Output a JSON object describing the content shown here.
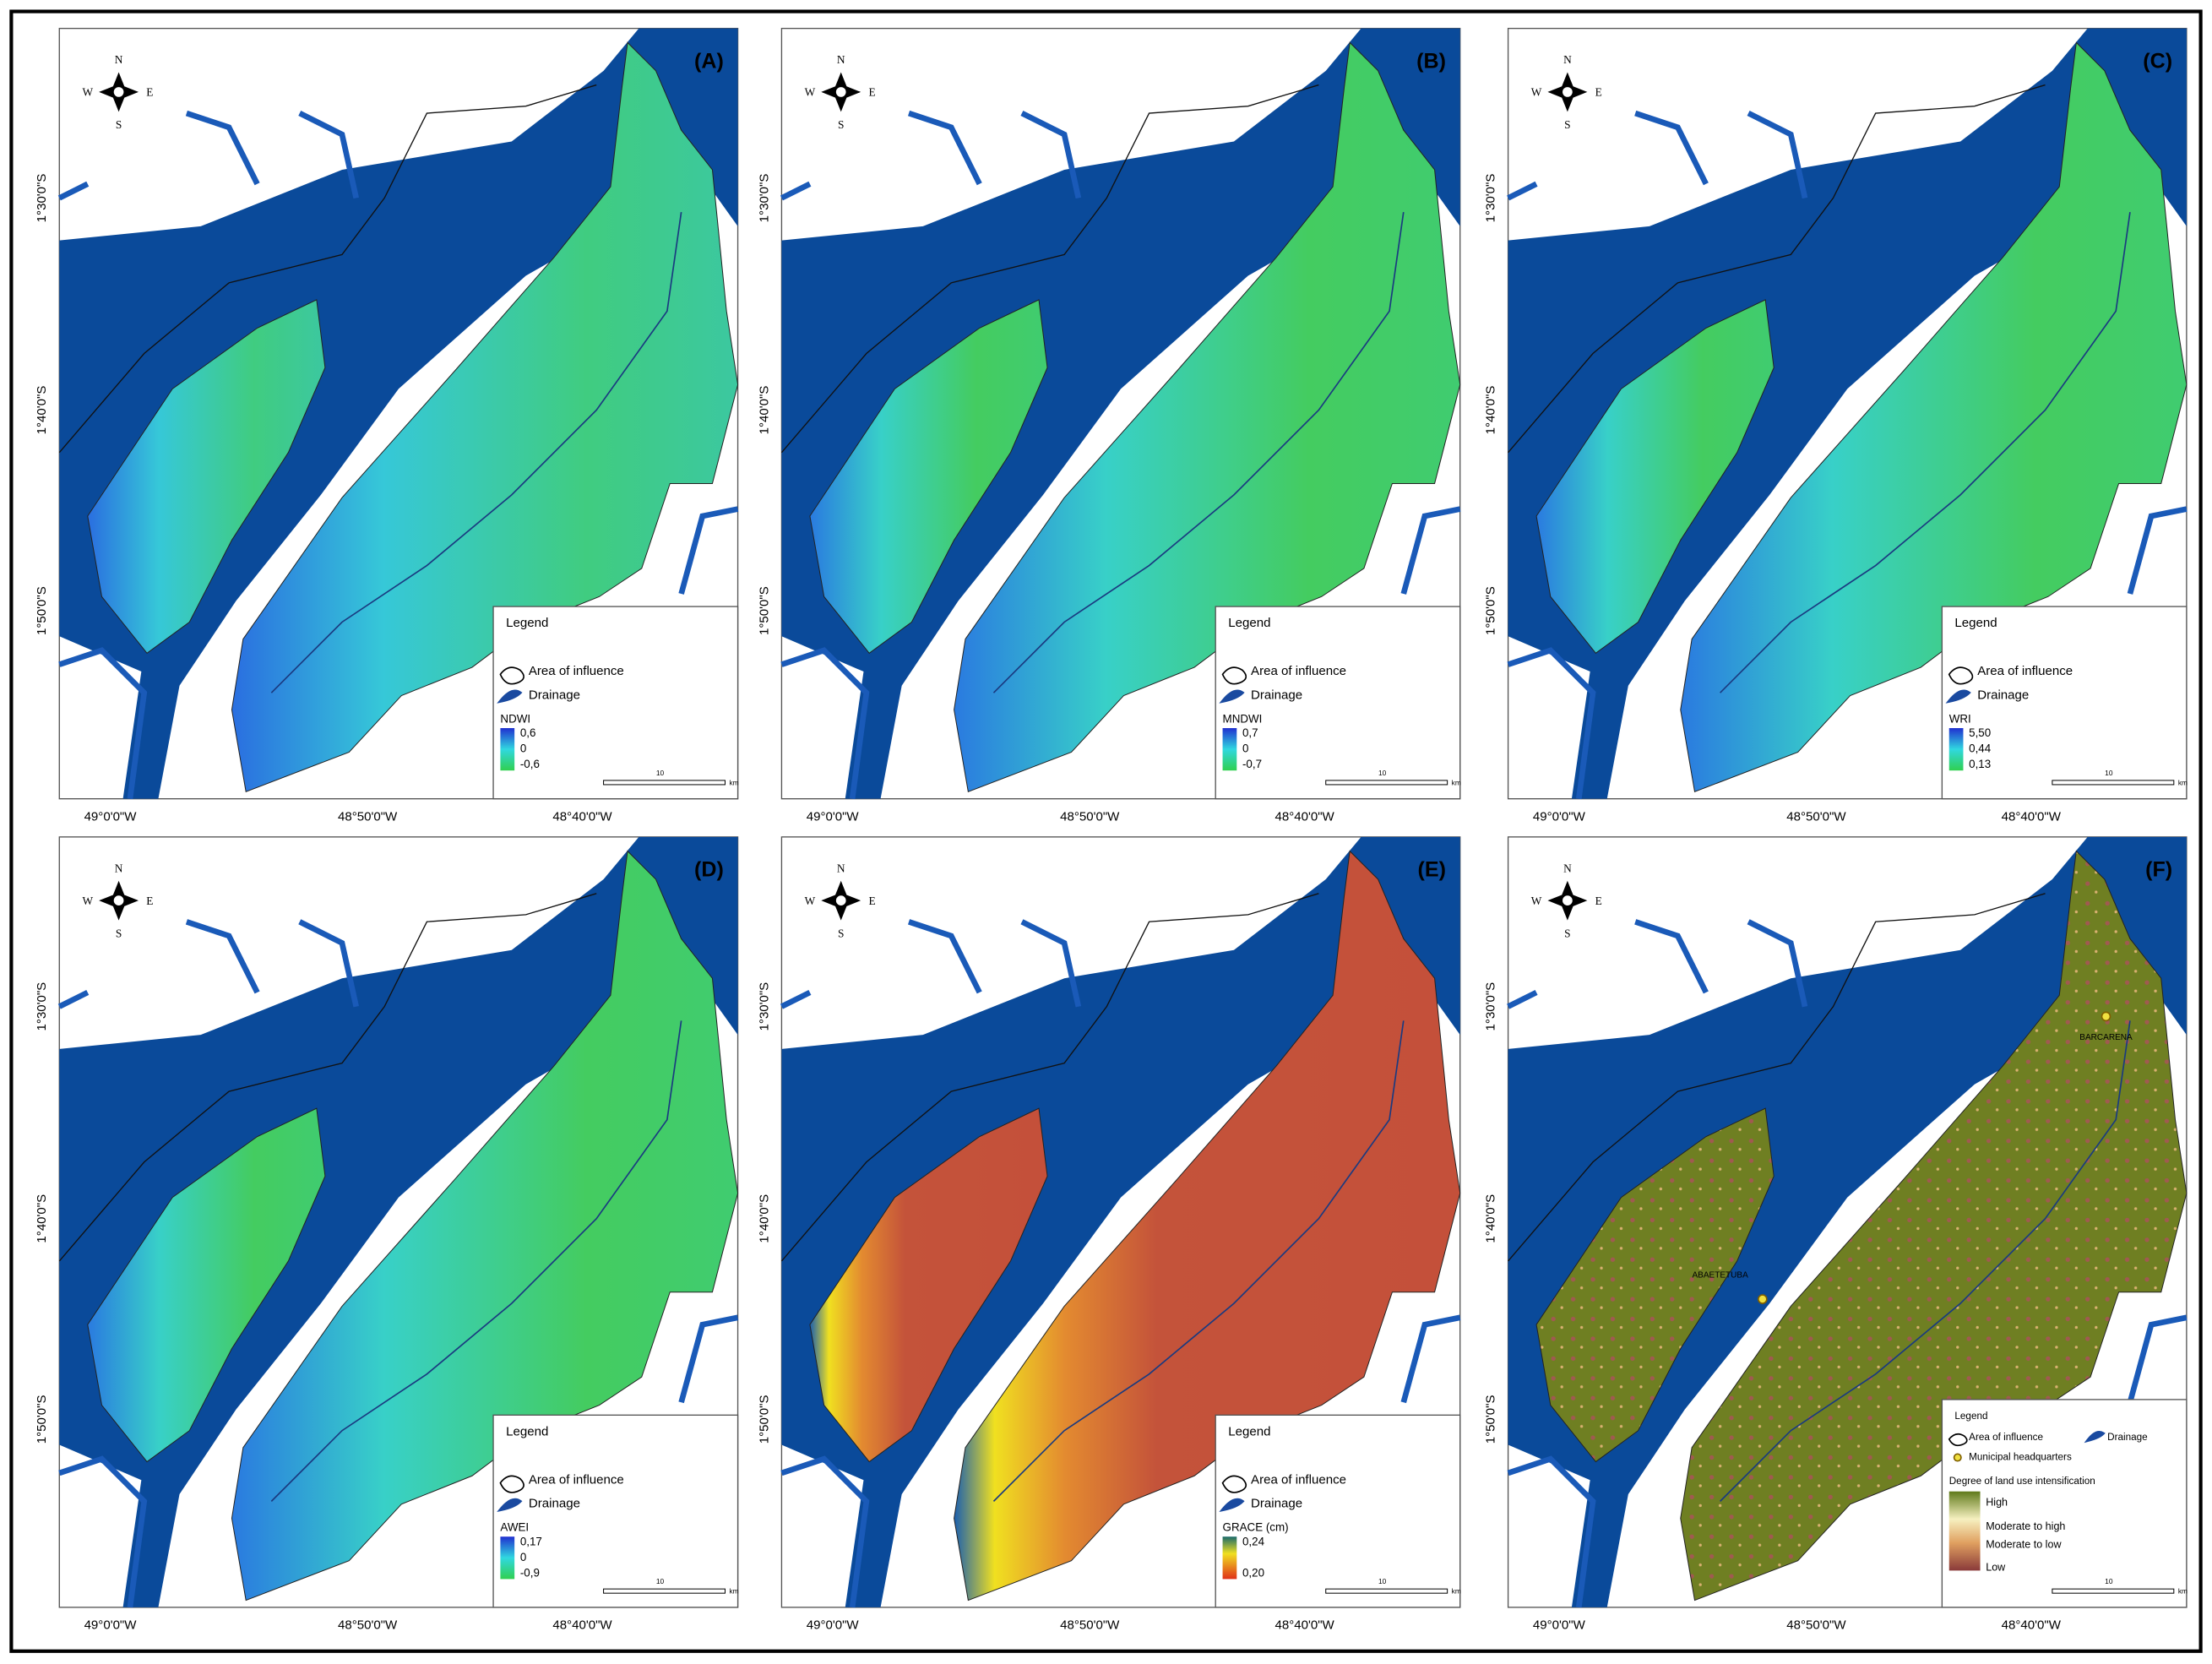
{
  "compass": {
    "n": "N",
    "s": "S",
    "e": "E",
    "w": "W"
  },
  "x_labels": [
    "49°0'0\"W",
    "48°50'0\"W",
    "48°40'0\"W"
  ],
  "y_labels": [
    "1°30'0\"S",
    "1°40'0\"S",
    "1°50'0\"S"
  ],
  "panels": [
    {
      "label": "(A)",
      "legend": {
        "title": "Legend",
        "items": [
          "Area of influence",
          "Drainage"
        ],
        "index": "NDWI",
        "scale": [
          "0,6",
          "0",
          "-0,6"
        ]
      },
      "scalebar": "10",
      "scaleunit": "km"
    },
    {
      "label": "(B)",
      "legend": {
        "title": "Legend",
        "items": [
          "Area of influence",
          "Drainage"
        ],
        "index": "MNDWI",
        "scale": [
          "0,7",
          "0",
          "-0,7"
        ]
      },
      "scalebar": "10",
      "scaleunit": "km"
    },
    {
      "label": "(C)",
      "legend": {
        "title": "Legend",
        "items": [
          "Area of influence",
          "Drainage"
        ],
        "index": "WRI",
        "scale": [
          "5,50",
          "0,44",
          "0,13"
        ]
      },
      "scalebar": "10",
      "scaleunit": "km"
    },
    {
      "label": "(D)",
      "legend": {
        "title": "Legend",
        "items": [
          "Area of influence",
          "Drainage"
        ],
        "index": "AWEI",
        "scale": [
          "0,17",
          "0",
          "-0,9"
        ]
      },
      "scalebar": "10",
      "scaleunit": "km"
    },
    {
      "label": "(E)",
      "legend": {
        "title": "Legend",
        "items": [
          "Area of influence",
          "Drainage"
        ],
        "index": "GRACE (cm)",
        "scale": [
          "0,24",
          "0,20"
        ]
      },
      "scalebar": "10",
      "scaleunit": "km"
    },
    {
      "label": "(F)",
      "legend": {
        "title": "Legend",
        "items": [
          "Area of influence",
          "Drainage",
          "Municipal headquarters"
        ],
        "index": "Degree of land use intensification",
        "classes": [
          "High",
          "Moderate to high",
          "Moderate to low",
          "Low"
        ]
      },
      "scalebar": "10",
      "scaleunit": "km",
      "places": [
        "BARCARENA",
        "ABAETETUBA"
      ]
    }
  ]
}
